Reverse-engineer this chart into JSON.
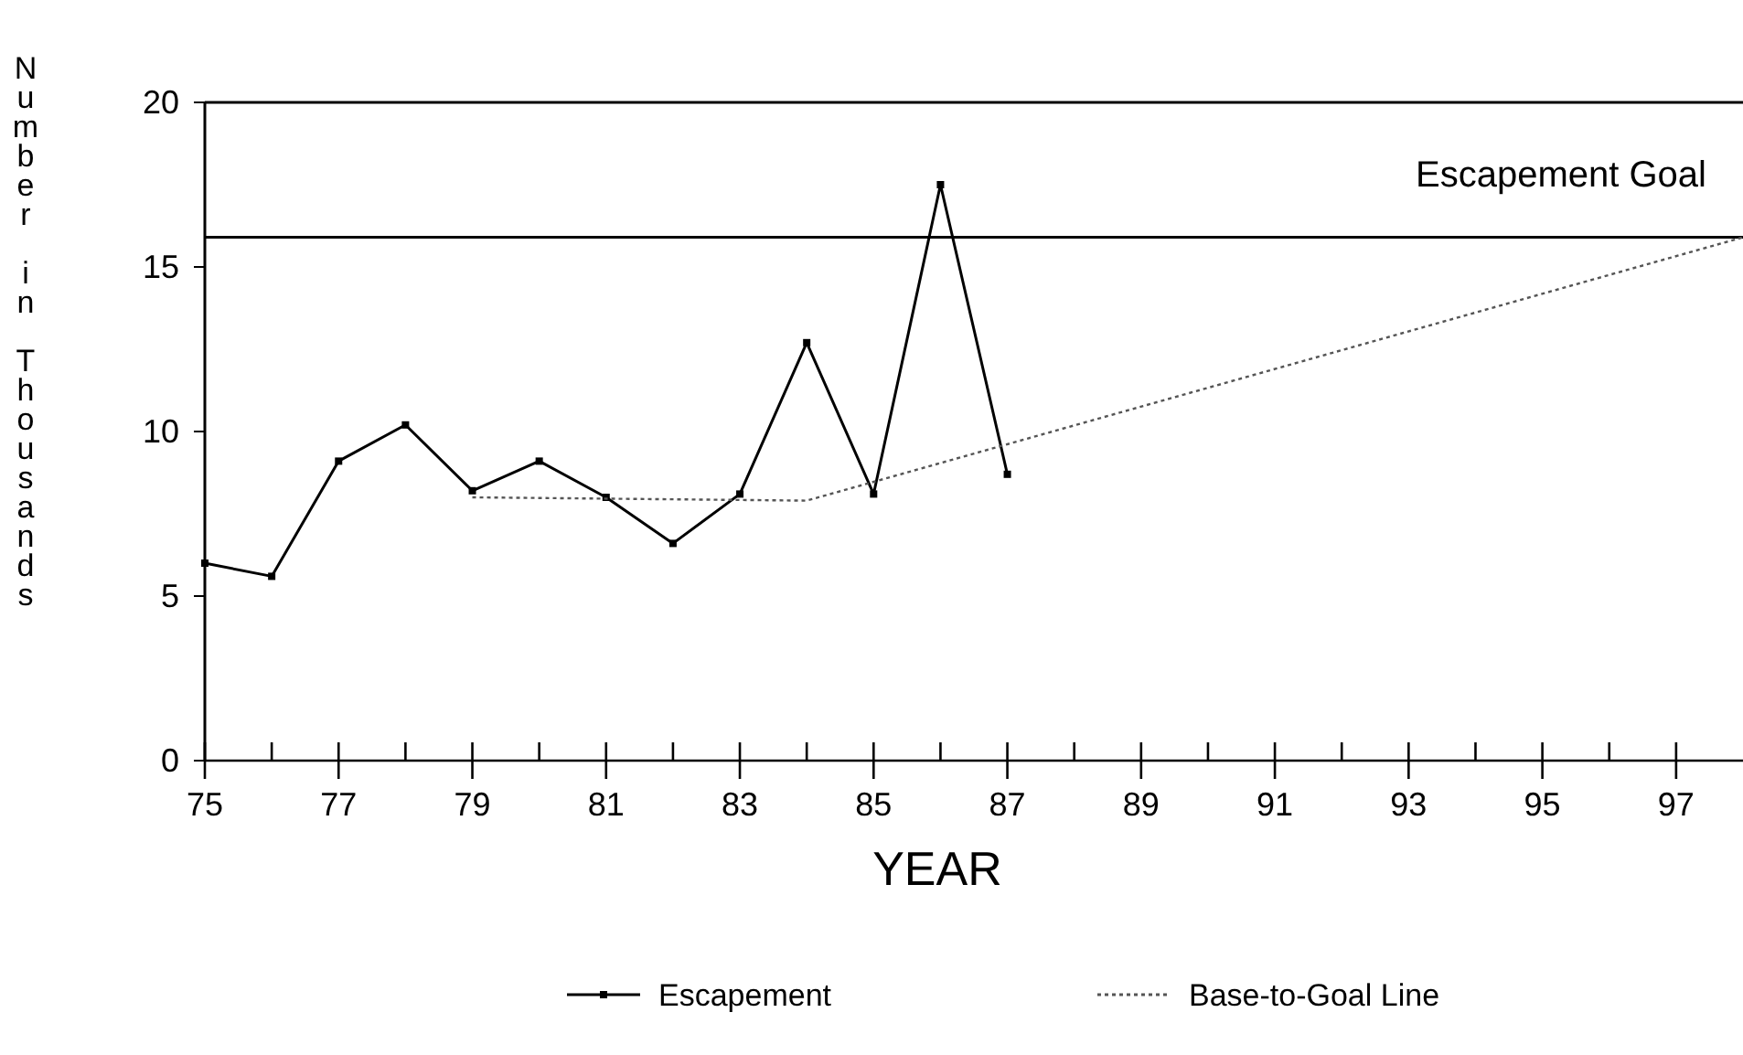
{
  "chart_data": {
    "type": "line",
    "xlabel": "YEAR",
    "ylabel": "Number in Thousands",
    "xlim": [
      75,
      98
    ],
    "ylim": [
      0,
      20
    ],
    "xticks": [
      75,
      {
        "value": 76,
        "label": null
      },
      77,
      {
        "value": 78,
        "label": null
      },
      79,
      {
        "value": 80,
        "label": null
      },
      81,
      {
        "value": 82,
        "label": null
      },
      83,
      {
        "value": 84,
        "label": null
      },
      85,
      {
        "value": 86,
        "label": null
      },
      87,
      {
        "value": 88,
        "label": null
      },
      89,
      {
        "value": 90,
        "label": null
      },
      91,
      {
        "value": 92,
        "label": null
      },
      93,
      {
        "value": 94,
        "label": null
      },
      95,
      {
        "value": 96,
        "label": null
      },
      97
    ],
    "yticks": [
      0,
      5,
      10,
      15,
      20
    ],
    "grid": false,
    "legend": "bottom",
    "ref_lines": [
      {
        "axis": "y",
        "value": 15.9,
        "label": "Escapement Goal",
        "color": "#000000",
        "line_style": "solid"
      }
    ],
    "series": [
      {
        "name": "Escapement",
        "color": "#000000",
        "marker": "square",
        "line_style": "solid",
        "x": [
          75,
          76,
          77,
          78,
          79,
          80,
          81,
          82,
          83,
          84,
          85,
          86,
          87
        ],
        "values": [
          6.0,
          5.6,
          9.1,
          10.2,
          8.2,
          9.1,
          8.0,
          6.6,
          8.1,
          12.7,
          8.1,
          17.5,
          8.7
        ]
      },
      {
        "name": "Base-to-Goal Line",
        "color": "#555555",
        "marker": "none",
        "line_style": "dotted",
        "x": [
          79,
          84,
          98
        ],
        "values": [
          8.0,
          7.9,
          15.9
        ]
      }
    ]
  }
}
